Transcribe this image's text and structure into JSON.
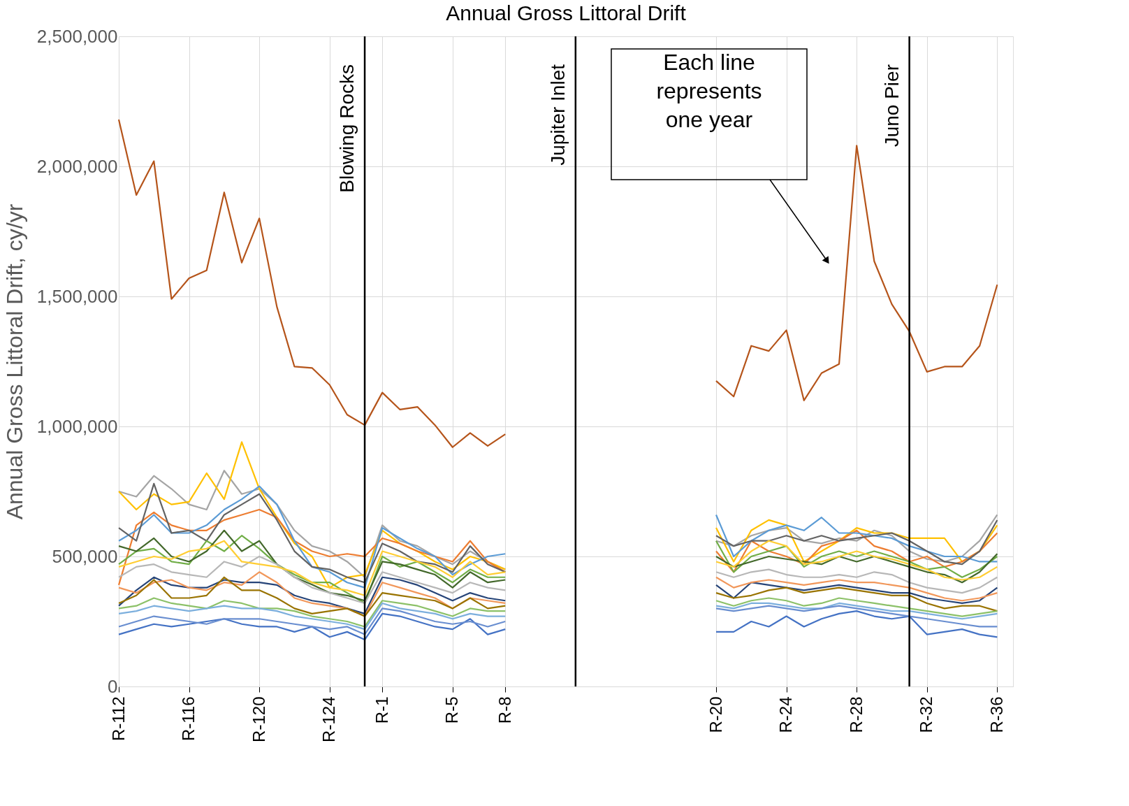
{
  "chart_data": {
    "type": "line",
    "title": "Annual Gross Littoral Drift",
    "ylabel": "Annual Gross Littoral Drift, cy/yr",
    "categories": [
      "R-112",
      null,
      null,
      null,
      "R-116",
      null,
      null,
      null,
      "R-120",
      null,
      null,
      null,
      "R-124",
      null,
      null,
      "R-1",
      null,
      null,
      null,
      "R-5",
      null,
      null,
      "R-8",
      null,
      null,
      null,
      null,
      null,
      null,
      null,
      null,
      null,
      null,
      null,
      "R-20",
      null,
      null,
      null,
      "R-24",
      null,
      null,
      null,
      "R-28",
      null,
      null,
      null,
      "R-32",
      null,
      null,
      null,
      "R-36"
    ],
    "ylim": [
      0,
      2500000
    ],
    "yticks": [
      0,
      {
        "value": 500000,
        "label": "500,000"
      },
      {
        "value": 1000000,
        "label": "1,000,000"
      },
      {
        "value": 1500000,
        "label": "1,500,000"
      },
      {
        "value": 2000000,
        "label": "2,000,000"
      },
      {
        "value": 2500000,
        "label": "2,500,000"
      }
    ],
    "grid": true,
    "series": [
      {
        "color": "#a5a5a5",
        "values": [
          750000,
          730000,
          810000,
          760000,
          700000,
          680000,
          830000,
          740000,
          760000,
          700000,
          600000,
          540000,
          520000,
          480000,
          420000,
          620000,
          560000,
          540000,
          500000,
          470000,
          520000,
          480000,
          450000,
          null,
          null,
          null,
          null,
          null,
          null,
          null,
          null,
          null,
          null,
          null,
          560000,
          540000,
          580000,
          600000,
          610000,
          560000,
          550000,
          570000,
          560000,
          600000,
          580000,
          520000,
          490000,
          480000,
          500000,
          560000,
          660000
        ]
      },
      {
        "color": "#ffc000",
        "values": [
          750000,
          680000,
          740000,
          700000,
          710000,
          820000,
          720000,
          940000,
          760000,
          650000,
          550000,
          500000,
          380000,
          420000,
          430000,
          600000,
          550000,
          520000,
          480000,
          450000,
          500000,
          480000,
          450000,
          null,
          null,
          null,
          null,
          null,
          null,
          null,
          null,
          null,
          null,
          null,
          610000,
          480000,
          600000,
          640000,
          620000,
          480000,
          520000,
          560000,
          610000,
          590000,
          590000,
          570000,
          570000,
          570000,
          480000,
          520000,
          620000
        ]
      },
      {
        "color": "#ed7d31",
        "values": [
          390000,
          620000,
          670000,
          620000,
          600000,
          600000,
          640000,
          660000,
          680000,
          650000,
          560000,
          520000,
          500000,
          510000,
          500000,
          570000,
          550000,
          520000,
          500000,
          480000,
          560000,
          480000,
          440000,
          null,
          null,
          null,
          null,
          null,
          null,
          null,
          null,
          null,
          null,
          null,
          520000,
          440000,
          560000,
          520000,
          500000,
          470000,
          540000,
          560000,
          600000,
          540000,
          520000,
          480000,
          500000,
          460000,
          480000,
          520000,
          590000
        ]
      },
      {
        "color": "#5b9bd5",
        "values": [
          560000,
          600000,
          660000,
          590000,
          590000,
          620000,
          680000,
          720000,
          770000,
          700000,
          560000,
          460000,
          440000,
          400000,
          380000,
          610000,
          570000,
          530000,
          500000,
          430000,
          470000,
          500000,
          510000,
          null,
          null,
          null,
          null,
          null,
          null,
          null,
          null,
          null,
          null,
          null,
          660000,
          500000,
          560000,
          600000,
          620000,
          600000,
          650000,
          590000,
          590000,
          580000,
          570000,
          540000,
          520000,
          500000,
          500000,
          480000,
          480000
        ]
      },
      {
        "color": "#636363",
        "values": [
          610000,
          560000,
          780000,
          590000,
          600000,
          560000,
          660000,
          700000,
          740000,
          640000,
          520000,
          460000,
          450000,
          420000,
          400000,
          550000,
          520000,
          480000,
          470000,
          440000,
          540000,
          470000,
          440000,
          null,
          null,
          null,
          null,
          null,
          null,
          null,
          null,
          null,
          null,
          null,
          580000,
          540000,
          560000,
          560000,
          580000,
          560000,
          580000,
          560000,
          570000,
          580000,
          590000,
          560000,
          520000,
          480000,
          470000,
          520000,
          640000
        ]
      },
      {
        "color": "#70ad47",
        "values": [
          470000,
          520000,
          530000,
          480000,
          470000,
          560000,
          520000,
          580000,
          530000,
          470000,
          430000,
          400000,
          400000,
          360000,
          320000,
          500000,
          460000,
          480000,
          440000,
          400000,
          450000,
          420000,
          420000,
          null,
          null,
          null,
          null,
          null,
          null,
          null,
          null,
          null,
          null,
          null,
          560000,
          440000,
          500000,
          520000,
          540000,
          460000,
          500000,
          520000,
          500000,
          520000,
          500000,
          480000,
          450000,
          460000,
          420000,
          450000,
          500000
        ]
      },
      {
        "color": "#43682b",
        "values": [
          540000,
          520000,
          570000,
          500000,
          480000,
          520000,
          600000,
          520000,
          560000,
          470000,
          420000,
          392000,
          360000,
          350000,
          330000,
          480000,
          470000,
          450000,
          430000,
          380000,
          440000,
          400000,
          410000,
          null,
          null,
          null,
          null,
          null,
          null,
          null,
          null,
          null,
          null,
          null,
          500000,
          460000,
          480000,
          500000,
          490000,
          480000,
          470000,
          500000,
          480000,
          500000,
          480000,
          460000,
          440000,
          430000,
          400000,
          440000,
          510000
        ]
      },
      {
        "color": "#b7b7b7",
        "values": [
          420000,
          460000,
          470000,
          440000,
          430000,
          420000,
          480000,
          460000,
          500000,
          470000,
          420000,
          380000,
          360000,
          340000,
          320000,
          440000,
          420000,
          400000,
          380000,
          360000,
          400000,
          380000,
          370000,
          null,
          null,
          null,
          null,
          null,
          null,
          null,
          null,
          null,
          null,
          null,
          440000,
          420000,
          440000,
          450000,
          430000,
          420000,
          420000,
          430000,
          420000,
          440000,
          430000,
          400000,
          380000,
          370000,
          360000,
          380000,
          420000
        ]
      },
      {
        "color": "#264478",
        "values": [
          310000,
          370000,
          420000,
          390000,
          380000,
          380000,
          410000,
          400000,
          400000,
          390000,
          350000,
          330000,
          320000,
          300000,
          280000,
          420000,
          410000,
          390000,
          360000,
          330000,
          360000,
          340000,
          330000,
          null,
          null,
          null,
          null,
          null,
          null,
          null,
          null,
          null,
          null,
          null,
          390000,
          340000,
          400000,
          390000,
          380000,
          370000,
          380000,
          390000,
          380000,
          370000,
          360000,
          360000,
          340000,
          330000,
          320000,
          330000,
          380000
        ]
      },
      {
        "color": "#f1975a",
        "values": [
          380000,
          360000,
          400000,
          410000,
          380000,
          370000,
          400000,
          390000,
          440000,
          400000,
          340000,
          320000,
          310000,
          300000,
          270000,
          400000,
          380000,
          360000,
          340000,
          300000,
          340000,
          330000,
          320000,
          null,
          null,
          null,
          null,
          null,
          null,
          null,
          null,
          null,
          null,
          null,
          420000,
          380000,
          400000,
          410000,
          400000,
          390000,
          400000,
          410000,
          400000,
          400000,
          390000,
          380000,
          360000,
          340000,
          330000,
          340000,
          360000
        ]
      },
      {
        "color": "#997300",
        "values": [
          320000,
          350000,
          410000,
          340000,
          340000,
          350000,
          420000,
          370000,
          370000,
          340000,
          300000,
          280000,
          290000,
          300000,
          270000,
          360000,
          350000,
          340000,
          330000,
          300000,
          340000,
          300000,
          310000,
          null,
          null,
          null,
          null,
          null,
          null,
          null,
          null,
          null,
          null,
          null,
          360000,
          340000,
          350000,
          370000,
          380000,
          360000,
          370000,
          380000,
          370000,
          360000,
          350000,
          350000,
          320000,
          300000,
          310000,
          310000,
          290000
        ]
      },
      {
        "color": "#8cc168",
        "values": [
          300000,
          310000,
          340000,
          320000,
          310000,
          300000,
          330000,
          320000,
          300000,
          300000,
          290000,
          270000,
          260000,
          250000,
          230000,
          330000,
          320000,
          310000,
          290000,
          270000,
          300000,
          290000,
          290000,
          null,
          null,
          null,
          null,
          null,
          null,
          null,
          null,
          null,
          null,
          null,
          330000,
          310000,
          330000,
          340000,
          330000,
          310000,
          320000,
          340000,
          330000,
          320000,
          310000,
          300000,
          290000,
          280000,
          270000,
          280000,
          290000
        ]
      },
      {
        "color": "#7cafdd",
        "values": [
          280000,
          290000,
          310000,
          300000,
          290000,
          300000,
          310000,
          300000,
          300000,
          290000,
          270000,
          260000,
          250000,
          240000,
          220000,
          320000,
          300000,
          290000,
          280000,
          260000,
          280000,
          270000,
          270000,
          null,
          null,
          null,
          null,
          null,
          null,
          null,
          null,
          null,
          null,
          null,
          310000,
          300000,
          320000,
          320000,
          310000,
          300000,
          300000,
          320000,
          310000,
          300000,
          290000,
          290000,
          280000,
          270000,
          260000,
          270000,
          280000
        ]
      },
      {
        "color": "#4472c4",
        "values": [
          200000,
          220000,
          240000,
          230000,
          240000,
          250000,
          260000,
          240000,
          230000,
          230000,
          210000,
          230000,
          190000,
          210000,
          180000,
          280000,
          270000,
          250000,
          230000,
          220000,
          260000,
          200000,
          220000,
          null,
          null,
          null,
          null,
          null,
          null,
          null,
          null,
          null,
          null,
          null,
          210000,
          210000,
          250000,
          230000,
          270000,
          230000,
          260000,
          280000,
          290000,
          270000,
          260000,
          270000,
          200000,
          210000,
          220000,
          200000,
          190000
        ]
      },
      {
        "color": "#698ed0",
        "values": [
          230000,
          250000,
          270000,
          260000,
          250000,
          240000,
          260000,
          260000,
          260000,
          250000,
          240000,
          230000,
          220000,
          230000,
          200000,
          300000,
          290000,
          270000,
          250000,
          240000,
          250000,
          230000,
          250000,
          null,
          null,
          null,
          null,
          null,
          null,
          null,
          null,
          null,
          null,
          null,
          300000,
          290000,
          300000,
          310000,
          300000,
          290000,
          300000,
          310000,
          300000,
          290000,
          280000,
          270000,
          260000,
          250000,
          240000,
          230000,
          230000
        ]
      },
      {
        "color": "#ffcd33",
        "values": [
          460000,
          480000,
          500000,
          490000,
          520000,
          530000,
          560000,
          480000,
          470000,
          460000,
          440000,
          400000,
          380000,
          370000,
          350000,
          520000,
          500000,
          480000,
          460000,
          420000,
          480000,
          430000,
          440000,
          null,
          null,
          null,
          null,
          null,
          null,
          null,
          null,
          null,
          null,
          null,
          480000,
          460000,
          520000,
          560000,
          540000,
          470000,
          480000,
          500000,
          520000,
          500000,
          490000,
          470000,
          450000,
          420000,
          410000,
          420000,
          460000
        ]
      },
      {
        "color": "#b5541a",
        "values": [
          2180000,
          1890000,
          2020000,
          1490000,
          1570000,
          1600000,
          1900000,
          1630000,
          1800000,
          1460000,
          1230000,
          1225000,
          1160000,
          1045000,
          1005000,
          1130000,
          1065000,
          1075000,
          1005000,
          920000,
          975000,
          925000,
          970000,
          null,
          null,
          null,
          null,
          null,
          null,
          null,
          null,
          null,
          null,
          null,
          1175000,
          1115000,
          1310000,
          1290000,
          1370000,
          1100000,
          1205000,
          1240000,
          2080000,
          1635000,
          1470000,
          1365000,
          1210000,
          1230000,
          1230000,
          1310000,
          1545000
        ]
      }
    ],
    "annotations": [
      "Blowing Rocks",
      "Jupiter Inlet",
      "Juno Pier",
      "Each line\nrepresents\none year"
    ]
  }
}
